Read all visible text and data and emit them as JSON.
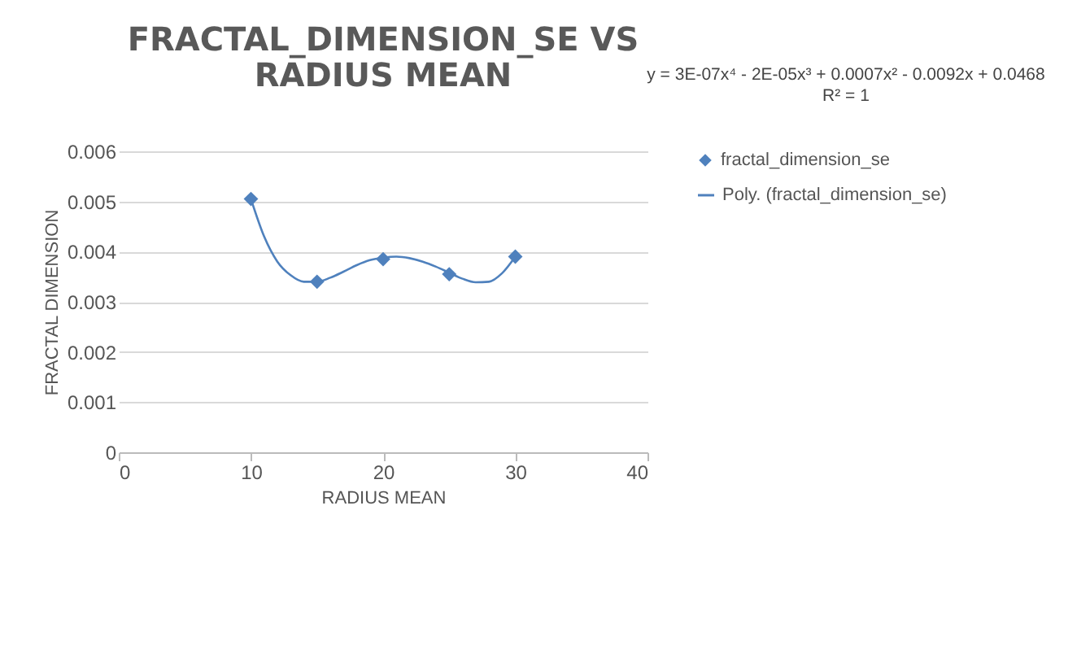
{
  "chart_data": {
    "type": "scatter",
    "title": "FRACTAL_DIMENSION_SE VS RADIUS MEAN",
    "xlabel": "RADIUS MEAN",
    "ylabel": "FRACTAL DIMENSION",
    "annotations": [
      "y = 3E-07x⁴ - 2E-05x³ + 0.0007x² - 0.0092x + 0.0468",
      "R² = 1"
    ],
    "xlim": [
      0,
      40
    ],
    "xticks": [
      0,
      10,
      20,
      30,
      40
    ],
    "ylim": [
      0,
      0.006
    ],
    "yticks": [
      0,
      0.001,
      0.002,
      0.003,
      0.004,
      0.005,
      0.006
    ],
    "grid": "y",
    "legend": "right",
    "series": [
      {
        "name": "fractal_dimension_se",
        "marker": "diamond",
        "color": "#4f81bd",
        "x": [
          10,
          15,
          20,
          25,
          30
        ],
        "values": [
          0.00505,
          0.0034,
          0.00385,
          0.00355,
          0.0039
        ]
      },
      {
        "name": "Poly. (fractal_dimension_se)",
        "type": "line",
        "color": "#4f81bd",
        "x": [
          10,
          11,
          12,
          13,
          14,
          15,
          16,
          17,
          18,
          19,
          20,
          21,
          22,
          23,
          24,
          25,
          26,
          27,
          28,
          29,
          30
        ],
        "values": [
          0.00505,
          0.0043,
          0.0038,
          0.00353,
          0.0034,
          0.0034,
          0.00348,
          0.0036,
          0.00373,
          0.00383,
          0.00388,
          0.0039,
          0.00387,
          0.0038,
          0.0037,
          0.00358,
          0.00346,
          0.00339,
          0.0034,
          0.00357,
          0.0039
        ]
      }
    ]
  }
}
